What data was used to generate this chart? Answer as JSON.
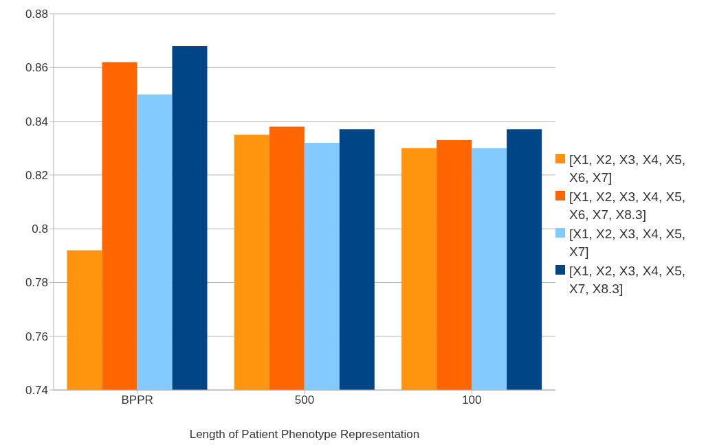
{
  "chart_data": {
    "type": "bar",
    "xlabel": "Length of Patient Phenotype Representation",
    "categories": [
      "BPPR",
      "500",
      "100"
    ],
    "series": [
      {
        "name": "[X1, X2, X3, X4, X5, X6, X7]",
        "color": "#ff950e",
        "values": [
          0.792,
          0.835,
          0.83
        ]
      },
      {
        "name": "[X1, X2, X3, X4, X5, X6, X7, X8.3]",
        "color": "#ff6600",
        "values": [
          0.862,
          0.838,
          0.833
        ]
      },
      {
        "name": "[X1, X2, X3, X4, X5, X7]",
        "color": "#83caff",
        "values": [
          0.85,
          0.832,
          0.83
        ]
      },
      {
        "name": "[X1, X2, X3, X4, X5, X7, X8.3]",
        "color": "#004586",
        "values": [
          0.868,
          0.837,
          0.837
        ]
      }
    ],
    "ylim": [
      0.74,
      0.88
    ],
    "yticks": [
      0.74,
      0.76,
      0.78,
      0.8,
      0.82,
      0.84,
      0.86,
      0.88
    ],
    "grid": "y",
    "legend": "right"
  }
}
